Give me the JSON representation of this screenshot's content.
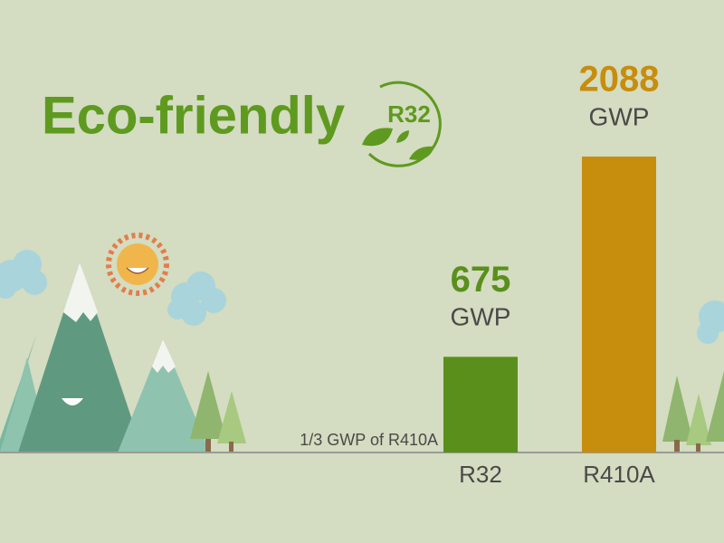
{
  "chart_data": {
    "type": "bar",
    "title": "Eco-friendly",
    "badge": "R32",
    "annotation": "1/3 GWP of R410A",
    "unit": "GWP",
    "categories": [
      "R32",
      "R410A"
    ],
    "values": [
      675,
      2088
    ],
    "colors": [
      "#5a8f1c",
      "#c78d0d"
    ]
  }
}
